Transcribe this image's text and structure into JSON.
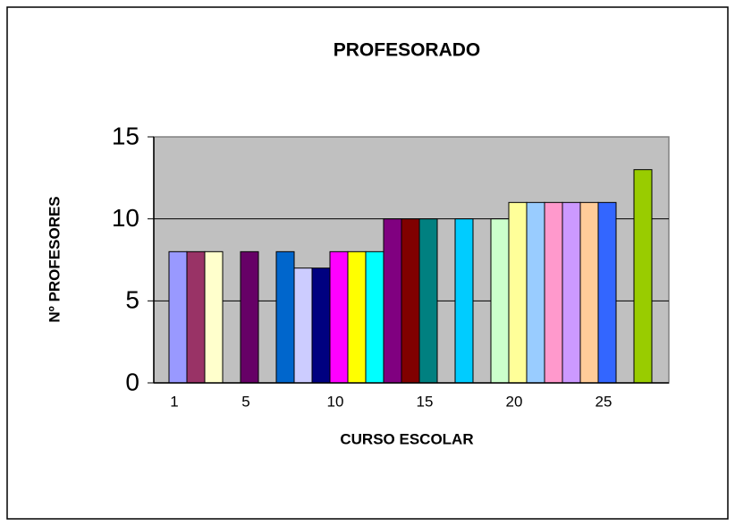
{
  "chart_data": {
    "type": "bar",
    "title": "PROFESORADO",
    "x_label": "CURSO ESCOLAR",
    "y_label": "Nº PROFESORES",
    "categories": [
      "1",
      null,
      null,
      null,
      "5",
      null,
      null,
      null,
      null,
      "10",
      null,
      null,
      null,
      null,
      "15",
      null,
      null,
      null,
      null,
      "20",
      null,
      null,
      null,
      null,
      "25",
      null,
      null,
      null
    ],
    "values": [
      8,
      8,
      8,
      null,
      8,
      null,
      8,
      7,
      7,
      8,
      8,
      8,
      10,
      10,
      10,
      null,
      10,
      null,
      10,
      11,
      11,
      11,
      11,
      11,
      11,
      null,
      13,
      null
    ],
    "colors": [
      "#9999ff",
      "#993366",
      "#ffffcc",
      null,
      "#660066",
      null,
      "#0066cc",
      "#ccccff",
      "#000080",
      "#ff00ff",
      "#ffff00",
      "#00ffff",
      "#800080",
      "#800000",
      "#008080",
      null,
      "#00ccff",
      null,
      "#ccffcc",
      "#ffff99",
      "#99ccff",
      "#ff99cc",
      "#cc99ff",
      "#ffcc99",
      "#3366ff",
      null,
      "#99cc00",
      null
    ],
    "ylim": [
      0,
      15
    ],
    "yticks": [
      0,
      5,
      10,
      15
    ],
    "grid": true
  }
}
